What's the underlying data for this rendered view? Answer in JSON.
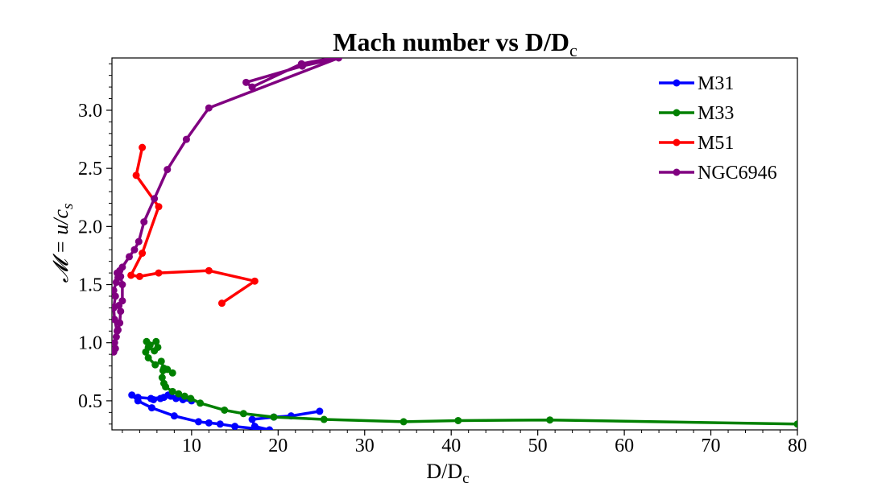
{
  "chart_data": {
    "type": "line",
    "title": "Mach number vs D/D",
    "title_sub": "c",
    "xlabel": "D/D",
    "xlabel_sub": "c",
    "ylabel": "𝓜 = u/c",
    "ylabel_sub": "s",
    "xlim": [
      0.8,
      80
    ],
    "ylim": [
      0.25,
      3.45
    ],
    "xticks": [
      10,
      20,
      30,
      40,
      50,
      60,
      70,
      80
    ],
    "xtick_labels": [
      "10",
      "20",
      "30",
      "40",
      "50",
      "60",
      "70",
      "80"
    ],
    "yticks": [
      0.5,
      1.0,
      1.5,
      2.0,
      2.5,
      3.0
    ],
    "ytick_labels": [
      "0.5",
      "1.0",
      "1.5",
      "2.0",
      "2.5",
      "3.0"
    ],
    "grid": false,
    "legend_position": "top-right",
    "series": [
      {
        "name": "M31",
        "color": "#0000ff",
        "points": [
          [
            24.8,
            0.41
          ],
          [
            21.5,
            0.37
          ],
          [
            19.5,
            0.36
          ],
          [
            17.0,
            0.34
          ],
          [
            17.3,
            0.28
          ],
          [
            19.0,
            0.25
          ],
          [
            17.5,
            0.26
          ],
          [
            15.0,
            0.28
          ],
          [
            13.3,
            0.3
          ],
          [
            12.0,
            0.31
          ],
          [
            10.8,
            0.32
          ],
          [
            8.0,
            0.37
          ],
          [
            5.4,
            0.44
          ],
          [
            3.8,
            0.5
          ],
          [
            3.1,
            0.55
          ],
          [
            3.8,
            0.53
          ],
          [
            5.3,
            0.52
          ],
          [
            6.8,
            0.53
          ],
          [
            7.6,
            0.54
          ],
          [
            8.2,
            0.52
          ],
          [
            9.0,
            0.51
          ],
          [
            10.0,
            0.5
          ],
          [
            8.9,
            0.52
          ],
          [
            7.3,
            0.55
          ],
          [
            6.4,
            0.52
          ],
          [
            5.6,
            0.51
          ]
        ]
      },
      {
        "name": "M33",
        "color": "#008000",
        "points": [
          [
            80.0,
            0.3
          ],
          [
            51.4,
            0.335
          ],
          [
            40.8,
            0.33
          ],
          [
            34.5,
            0.32
          ],
          [
            25.3,
            0.34
          ],
          [
            19.5,
            0.36
          ],
          [
            16.0,
            0.39
          ],
          [
            13.8,
            0.42
          ],
          [
            11.0,
            0.48
          ],
          [
            9.9,
            0.52
          ],
          [
            9.2,
            0.54
          ],
          [
            8.5,
            0.56
          ],
          [
            7.8,
            0.58
          ],
          [
            7.0,
            0.62
          ],
          [
            6.8,
            0.65
          ],
          [
            6.6,
            0.7
          ],
          [
            6.7,
            0.76
          ],
          [
            7.2,
            0.77
          ],
          [
            7.8,
            0.74
          ],
          [
            6.8,
            0.78
          ],
          [
            6.5,
            0.84
          ],
          [
            5.8,
            0.81
          ],
          [
            5.0,
            0.87
          ],
          [
            4.7,
            0.92
          ],
          [
            5.0,
            0.96
          ],
          [
            5.7,
            0.93
          ],
          [
            6.1,
            0.96
          ],
          [
            5.9,
            1.01
          ],
          [
            5.2,
            0.98
          ],
          [
            4.8,
            1.01
          ]
        ]
      },
      {
        "name": "M51",
        "color": "#ff0000",
        "points": [
          [
            13.5,
            1.34
          ],
          [
            17.3,
            1.53
          ],
          [
            12.0,
            1.62
          ],
          [
            6.2,
            1.6
          ],
          [
            4.0,
            1.57
          ],
          [
            3.0,
            1.58
          ],
          [
            4.3,
            1.77
          ],
          [
            6.2,
            2.17
          ],
          [
            3.6,
            2.44
          ],
          [
            4.3,
            2.68
          ]
        ]
      },
      {
        "name": "NGC6946",
        "color": "#800080",
        "points": [
          [
            27.0,
            3.46
          ],
          [
            22.7,
            3.4
          ],
          [
            17.0,
            3.2
          ],
          [
            16.3,
            3.24
          ],
          [
            22.8,
            3.38
          ],
          [
            27.0,
            3.45
          ],
          [
            12.0,
            3.02
          ],
          [
            9.4,
            2.75
          ],
          [
            7.2,
            2.49
          ],
          [
            5.7,
            2.24
          ],
          [
            4.5,
            2.04
          ],
          [
            3.9,
            1.87
          ],
          [
            3.4,
            1.8
          ],
          [
            2.8,
            1.74
          ],
          [
            2.0,
            1.65
          ],
          [
            1.7,
            1.62
          ],
          [
            1.8,
            1.57
          ],
          [
            2.0,
            1.5
          ],
          [
            2.0,
            1.36
          ],
          [
            1.6,
            1.32
          ],
          [
            1.8,
            1.27
          ],
          [
            1.7,
            1.17
          ],
          [
            1.5,
            1.11
          ],
          [
            1.1,
            1.0
          ],
          [
            1.0,
            0.92
          ],
          [
            1.2,
            0.95
          ],
          [
            1.3,
            1.05
          ],
          [
            1.4,
            1.1
          ],
          [
            1.1,
            1.2
          ],
          [
            1.0,
            1.3
          ],
          [
            1.2,
            1.4
          ],
          [
            1.0,
            1.45
          ],
          [
            1.3,
            1.52
          ],
          [
            1.5,
            1.56
          ],
          [
            1.4,
            1.6
          ]
        ]
      }
    ]
  }
}
